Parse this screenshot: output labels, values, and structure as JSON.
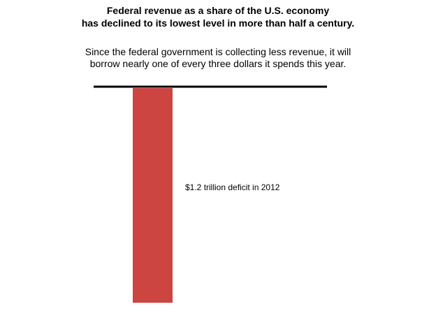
{
  "title": {
    "line1": "Federal revenue as a share of the U.S. economy",
    "line2": "has declined to its lowest level in more than half a century."
  },
  "subtitle": {
    "line1": "Since the federal government is collecting less revenue, it will",
    "line2": "borrow nearly one of every three dollars it spends this year."
  },
  "colors": {
    "bar": "#cc4540",
    "baseline": "#000000"
  },
  "chart_data": {
    "type": "bar",
    "categories": [
      "2012"
    ],
    "series": [
      {
        "values": [
          -1.2
        ]
      }
    ],
    "annotations": [
      "$1.2 trillion deficit in 2012"
    ],
    "units": "trillion dollars",
    "ylim": [
      -1.2,
      0
    ],
    "grid": false,
    "legend": "none"
  }
}
